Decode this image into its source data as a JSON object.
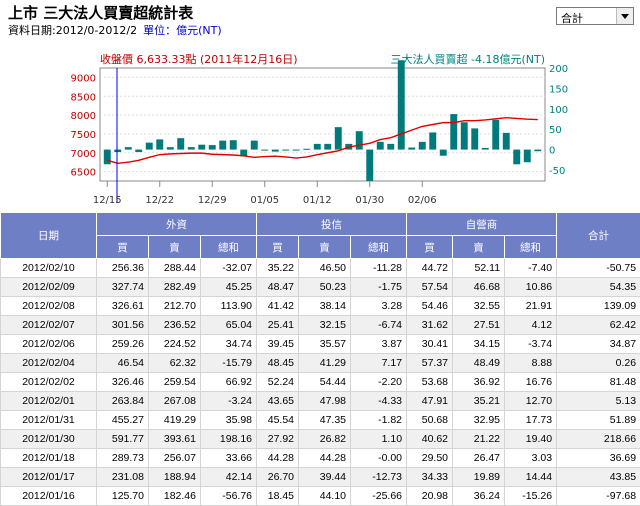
{
  "header": {
    "title": "上市 三大法人買賣超統計表",
    "date_range": "資料日期:2012/0-2012/2",
    "unit": "單位：億元(NT)"
  },
  "select": {
    "value": "合計"
  },
  "chart_info": {
    "close_label": "收盤價 6,633.33點 (2011年12月16日)",
    "net_label": "三大法人買賣超 -4.18億元(NT)"
  },
  "chart_data": {
    "type": "bar",
    "left_axis": {
      "ticks": [
        "9000",
        "8500",
        "8000",
        "7500",
        "7000",
        "6500"
      ],
      "ylim": [
        6250,
        9250
      ]
    },
    "right_axis": {
      "ticks": [
        "200",
        "150",
        "100",
        "50",
        "0",
        "-50"
      ],
      "ylim": [
        -77,
        200
      ]
    },
    "x_tick_labels": [
      "12/15",
      "12/22",
      "12/29",
      "01/05",
      "01/12",
      "01/30",
      "02/06"
    ],
    "x_tick_index": [
      0,
      5,
      10,
      15,
      20,
      25,
      30
    ],
    "bars": [
      -36,
      -6,
      6,
      -6,
      17,
      25,
      6,
      28,
      6,
      12,
      11,
      22,
      23,
      -17,
      22,
      -2,
      -5,
      -2,
      -1,
      2,
      14,
      14,
      55,
      14,
      45,
      -77,
      19,
      14,
      219,
      5,
      19,
      42,
      -15,
      87,
      67,
      52,
      4,
      73,
      41,
      -36,
      -31,
      -4
    ],
    "line": [
      6800,
      6720,
      6750,
      6800,
      6880,
      6950,
      6970,
      6980,
      6990,
      6990,
      6960,
      6950,
      6940,
      6920,
      6880,
      6900,
      6910,
      6890,
      6860,
      6890,
      6950,
      7000,
      7050,
      7150,
      7200,
      7250,
      7350,
      7400,
      7500,
      7600,
      7700,
      7750,
      7800,
      7800,
      7850,
      7850,
      7870,
      7900,
      7930,
      7910,
      7890,
      7880
    ],
    "colors": {
      "bar": "#007a7a",
      "line": "#e00000",
      "cursor": "#0000ff",
      "left_text": "#c00000",
      "right_text": "#008080"
    }
  },
  "table": {
    "groups": {
      "date": "日期",
      "foreign": "外資",
      "trust": "投信",
      "dealer": "自營商",
      "total": "合計"
    },
    "sub": {
      "buy": "買",
      "sell": "賣",
      "net": "總和"
    },
    "rows": [
      [
        "2012/02/10",
        "256.36",
        "288.44",
        "-32.07",
        "35.22",
        "46.50",
        "-11.28",
        "44.72",
        "52.11",
        "-7.40",
        "-50.75"
      ],
      [
        "2012/02/09",
        "327.74",
        "282.49",
        "45.25",
        "48.47",
        "50.23",
        "-1.75",
        "57.54",
        "46.68",
        "10.86",
        "54.35"
      ],
      [
        "2012/02/08",
        "326.61",
        "212.70",
        "113.90",
        "41.42",
        "38.14",
        "3.28",
        "54.46",
        "32.55",
        "21.91",
        "139.09"
      ],
      [
        "2012/02/07",
        "301.56",
        "236.52",
        "65.04",
        "25.41",
        "32.15",
        "-6.74",
        "31.62",
        "27.51",
        "4.12",
        "62.42"
      ],
      [
        "2012/02/06",
        "259.26",
        "224.52",
        "34.74",
        "39.45",
        "35.57",
        "3.87",
        "30.41",
        "34.15",
        "-3.74",
        "34.87"
      ],
      [
        "2012/02/04",
        "46.54",
        "62.32",
        "-15.79",
        "48.45",
        "41.29",
        "7.17",
        "57.37",
        "48.49",
        "8.88",
        "0.26"
      ],
      [
        "2012/02/02",
        "326.46",
        "259.54",
        "66.92",
        "52.24",
        "54.44",
        "-2.20",
        "53.68",
        "36.92",
        "16.76",
        "81.48"
      ],
      [
        "2012/02/01",
        "263.84",
        "267.08",
        "-3.24",
        "43.65",
        "47.98",
        "-4.33",
        "47.91",
        "35.21",
        "12.70",
        "5.13"
      ],
      [
        "2012/01/31",
        "455.27",
        "419.29",
        "35.98",
        "45.54",
        "47.35",
        "-1.82",
        "50.68",
        "32.95",
        "17.73",
        "51.89"
      ],
      [
        "2012/01/30",
        "591.77",
        "393.61",
        "198.16",
        "27.92",
        "26.82",
        "1.10",
        "40.62",
        "21.22",
        "19.40",
        "218.66"
      ],
      [
        "2012/01/18",
        "289.73",
        "256.07",
        "33.66",
        "44.28",
        "44.28",
        "-0.00",
        "29.50",
        "26.47",
        "3.03",
        "36.69"
      ],
      [
        "2012/01/17",
        "231.08",
        "188.94",
        "42.14",
        "26.70",
        "39.44",
        "-12.73",
        "34.33",
        "19.89",
        "14.44",
        "43.85"
      ],
      [
        "2012/01/16",
        "125.70",
        "182.46",
        "-56.76",
        "18.45",
        "44.10",
        "-25.66",
        "20.98",
        "36.24",
        "-15.26",
        "-97.68"
      ]
    ]
  }
}
